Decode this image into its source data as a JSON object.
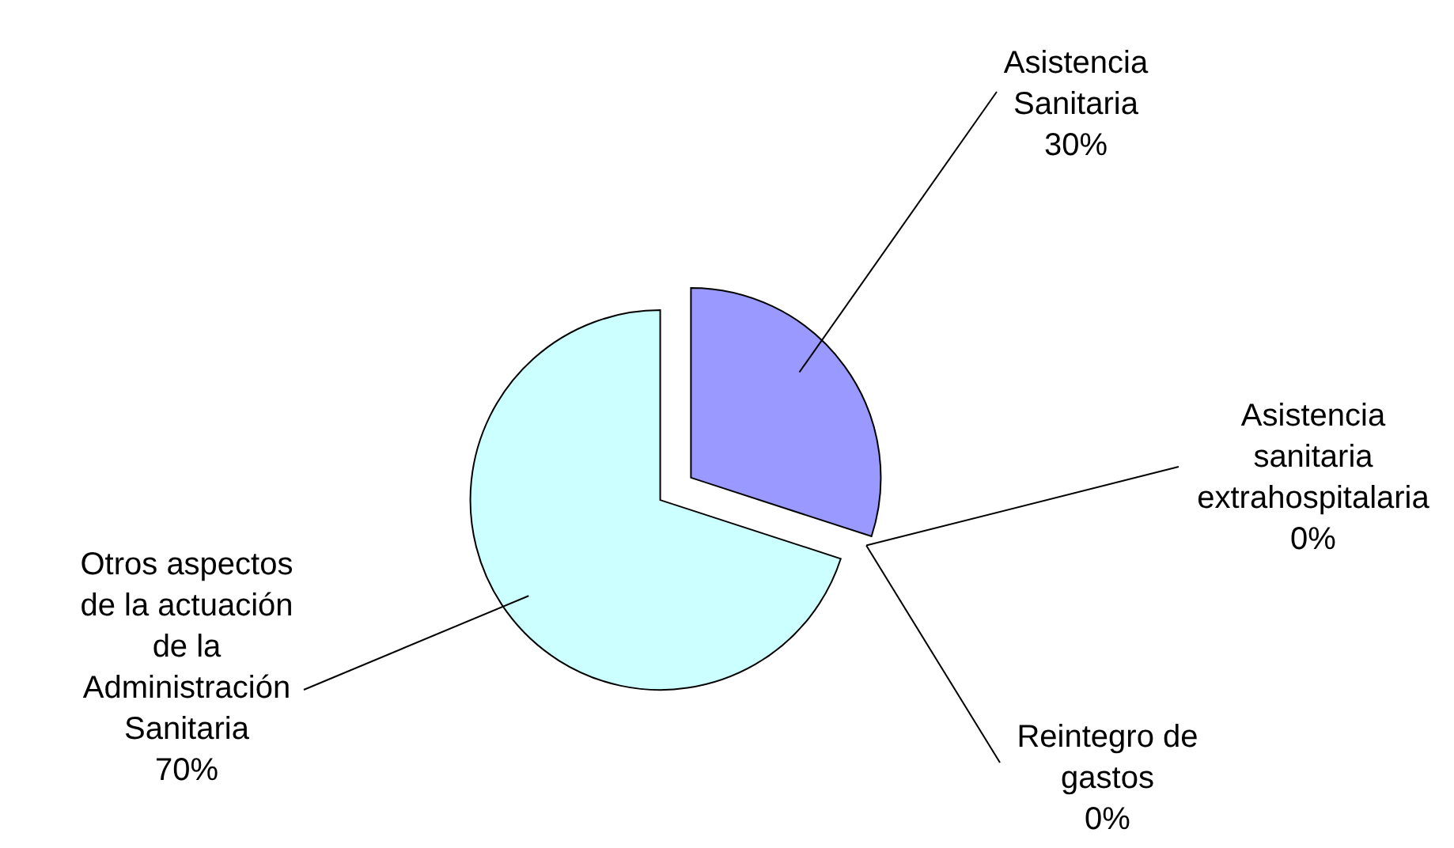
{
  "chart_data": {
    "type": "pie",
    "categories": [
      "Asistencia Sanitaria",
      "Asistencia sanitaria extrahospitalaria",
      "Reintegro de gastos",
      "Otros aspectos de la actuación de la Administración Sanitaria"
    ],
    "values": [
      30,
      0,
      0,
      70
    ],
    "colors": [
      "#9999ff",
      "#000000",
      "#000000",
      "#ccffff"
    ],
    "value_labels": [
      "30%",
      "0%",
      "0%",
      "70%"
    ],
    "legend": false
  }
}
